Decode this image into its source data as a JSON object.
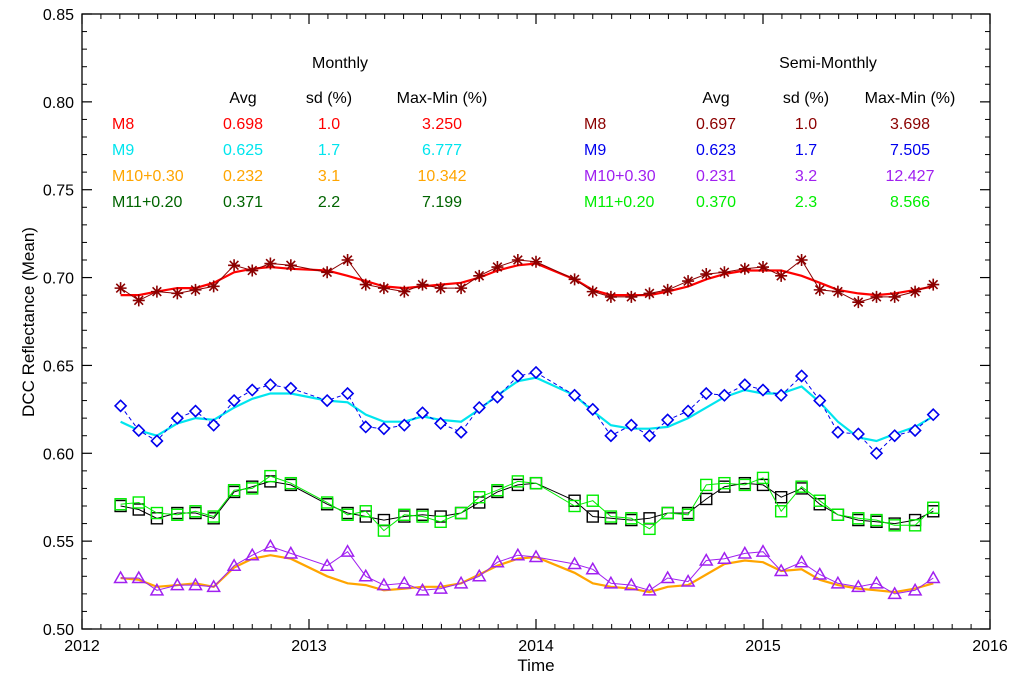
{
  "chart_data": {
    "type": "line",
    "xlabel": "Time",
    "ylabel": "DCC Reflectance (Mean)",
    "xlim": [
      2012,
      2016
    ],
    "ylim": [
      0.5,
      0.85
    ],
    "x_ticks": [
      "2012",
      "2013",
      "2014",
      "2015",
      "2016"
    ],
    "y_ticks": [
      "0.50",
      "0.55",
      "0.60",
      "0.65",
      "0.70",
      "0.75",
      "0.80",
      "0.85"
    ],
    "stats_tables": [
      {
        "title": "Monthly",
        "headers": [
          "Avg",
          "sd (%)",
          "Max-Min (%)"
        ],
        "rows": [
          {
            "label": "M8",
            "avg": "0.698",
            "sd": "1.0",
            "maxmin": "3.250",
            "color": "#ff0000"
          },
          {
            "label": "M9",
            "avg": "0.625",
            "sd": "1.7",
            "maxmin": "6.777",
            "color": "#00e5ee"
          },
          {
            "label": "M10+0.30",
            "avg": "0.232",
            "sd": "3.1",
            "maxmin": "10.342",
            "color": "#ffa500"
          },
          {
            "label": "M11+0.20",
            "avg": "0.371",
            "sd": "2.2",
            "maxmin": "7.199",
            "color": "#006400"
          }
        ]
      },
      {
        "title": "Semi-Monthly",
        "headers": [
          "Avg",
          "sd (%)",
          "Max-Min (%)"
        ],
        "rows": [
          {
            "label": "M8",
            "avg": "0.697",
            "sd": "1.0",
            "maxmin": "3.698",
            "color": "#8b0000"
          },
          {
            "label": "M9",
            "avg": "0.623",
            "sd": "1.7",
            "maxmin": "7.505",
            "color": "#0000ee"
          },
          {
            "label": "M10+0.30",
            "avg": "0.231",
            "sd": "3.2",
            "maxmin": "12.427",
            "color": "#a020f0"
          },
          {
            "label": "M11+0.20",
            "avg": "0.370",
            "sd": "2.3",
            "maxmin": "8.566",
            "color": "#00ee00"
          }
        ]
      }
    ],
    "x": [
      2012.17,
      2012.25,
      2012.33,
      2012.42,
      2012.5,
      2012.58,
      2012.67,
      2012.75,
      2012.83,
      2012.92,
      2013.08,
      2013.17,
      2013.25,
      2013.33,
      2013.42,
      2013.5,
      2013.58,
      2013.67,
      2013.75,
      2013.83,
      2013.92,
      2014.0,
      2014.17,
      2014.25,
      2014.33,
      2014.42,
      2014.5,
      2014.58,
      2014.67,
      2014.75,
      2014.83,
      2014.92,
      2015.0,
      2015.08,
      2015.17,
      2015.25,
      2015.33,
      2015.42,
      2015.5,
      2015.58,
      2015.67,
      2015.75
    ],
    "series": [
      {
        "name": "M8 Monthly",
        "marker": "line",
        "color": "#ff0000",
        "dash": "",
        "values": [
          0.69,
          0.69,
          0.692,
          0.694,
          0.694,
          0.697,
          0.703,
          0.705,
          0.706,
          0.705,
          0.704,
          0.701,
          0.698,
          0.695,
          0.694,
          0.695,
          0.696,
          0.697,
          0.7,
          0.704,
          0.707,
          0.708,
          0.699,
          0.693,
          0.69,
          0.69,
          0.69,
          0.692,
          0.695,
          0.699,
          0.702,
          0.704,
          0.704,
          0.704,
          0.701,
          0.697,
          0.693,
          0.691,
          0.69,
          0.691,
          0.693,
          0.695
        ]
      },
      {
        "name": "M8 Semi-Monthly",
        "marker": "asterisk",
        "color": "#8b0000",
        "dash": "",
        "values": [
          0.694,
          0.687,
          0.692,
          0.691,
          0.693,
          0.695,
          0.707,
          0.704,
          0.708,
          0.707,
          0.703,
          0.71,
          0.696,
          0.694,
          0.692,
          0.696,
          0.694,
          0.694,
          0.701,
          0.706,
          0.71,
          0.709,
          0.699,
          0.692,
          0.689,
          0.689,
          0.691,
          0.693,
          0.698,
          0.702,
          0.703,
          0.705,
          0.706,
          0.701,
          0.71,
          0.693,
          0.692,
          0.686,
          0.689,
          0.689,
          0.692,
          0.696
        ]
      },
      {
        "name": "M9 Monthly",
        "marker": "line",
        "color": "#00e5ee",
        "dash": "",
        "values": [
          0.618,
          0.613,
          0.61,
          0.617,
          0.62,
          0.619,
          0.626,
          0.631,
          0.634,
          0.634,
          0.63,
          0.629,
          0.622,
          0.618,
          0.618,
          0.621,
          0.619,
          0.618,
          0.625,
          0.633,
          0.641,
          0.643,
          0.633,
          0.624,
          0.616,
          0.614,
          0.614,
          0.615,
          0.62,
          0.626,
          0.632,
          0.636,
          0.634,
          0.634,
          0.638,
          0.629,
          0.618,
          0.609,
          0.607,
          0.611,
          0.615,
          0.621
        ]
      },
      {
        "name": "M9 Semi-Monthly",
        "marker": "diamond",
        "color": "#0000ee",
        "dash": "4,3",
        "values": [
          0.627,
          0.613,
          0.607,
          0.62,
          0.624,
          0.616,
          0.63,
          0.636,
          0.639,
          0.637,
          0.63,
          0.634,
          0.615,
          0.614,
          0.616,
          0.623,
          0.617,
          0.612,
          0.626,
          0.632,
          0.644,
          0.646,
          0.633,
          0.625,
          0.61,
          0.616,
          0.61,
          0.619,
          0.624,
          0.634,
          0.633,
          0.639,
          0.636,
          0.633,
          0.644,
          0.63,
          0.612,
          0.611,
          0.6,
          0.61,
          0.613,
          0.622
        ]
      },
      {
        "name": "M11+0.20 Monthly",
        "marker": "square",
        "color": "#000000",
        "dash": "",
        "values": [
          0.57,
          0.568,
          0.563,
          0.566,
          0.566,
          0.563,
          0.578,
          0.581,
          0.584,
          0.582,
          0.571,
          0.566,
          0.564,
          0.562,
          0.564,
          0.565,
          0.564,
          0.566,
          0.572,
          0.578,
          0.582,
          0.583,
          0.573,
          0.564,
          0.563,
          0.562,
          0.563,
          0.566,
          0.566,
          0.574,
          0.581,
          0.583,
          0.582,
          0.575,
          0.58,
          0.571,
          0.565,
          0.562,
          0.561,
          0.56,
          0.562,
          0.567
        ]
      },
      {
        "name": "M11+0.20 Semi-Monthly",
        "marker": "square",
        "color": "#00ee00",
        "dash": "",
        "values": [
          0.571,
          0.572,
          0.566,
          0.565,
          0.567,
          0.564,
          0.579,
          0.58,
          0.587,
          0.583,
          0.572,
          0.565,
          0.567,
          0.556,
          0.565,
          0.564,
          0.561,
          0.566,
          0.575,
          0.579,
          0.584,
          0.583,
          0.57,
          0.573,
          0.564,
          0.563,
          0.557,
          0.566,
          0.565,
          0.582,
          0.583,
          0.582,
          0.586,
          0.567,
          0.581,
          0.573,
          0.565,
          0.563,
          0.562,
          0.559,
          0.559,
          0.569
        ]
      },
      {
        "name": "M10+0.30 Monthly",
        "marker": "line",
        "color": "#ffa500",
        "dash": "",
        "values": [
          0.529,
          0.528,
          0.524,
          0.525,
          0.526,
          0.524,
          0.535,
          0.54,
          0.542,
          0.54,
          0.53,
          0.526,
          0.525,
          0.522,
          0.523,
          0.524,
          0.524,
          0.526,
          0.531,
          0.536,
          0.54,
          0.541,
          0.532,
          0.526,
          0.524,
          0.523,
          0.521,
          0.524,
          0.525,
          0.531,
          0.537,
          0.539,
          0.538,
          0.533,
          0.534,
          0.528,
          0.525,
          0.523,
          0.522,
          0.521,
          0.523,
          0.526
        ]
      },
      {
        "name": "M10+0.30 Semi-Monthly",
        "marker": "triangle",
        "color": "#a020f0",
        "dash": "",
        "values": [
          0.529,
          0.529,
          0.522,
          0.525,
          0.525,
          0.524,
          0.536,
          0.542,
          0.547,
          0.543,
          0.536,
          0.544,
          0.53,
          0.525,
          0.526,
          0.522,
          0.523,
          0.526,
          0.53,
          0.538,
          0.542,
          0.541,
          0.537,
          0.534,
          0.526,
          0.525,
          0.522,
          0.529,
          0.527,
          0.539,
          0.54,
          0.543,
          0.544,
          0.533,
          0.538,
          0.531,
          0.526,
          0.524,
          0.526,
          0.52,
          0.522,
          0.529
        ]
      }
    ]
  }
}
